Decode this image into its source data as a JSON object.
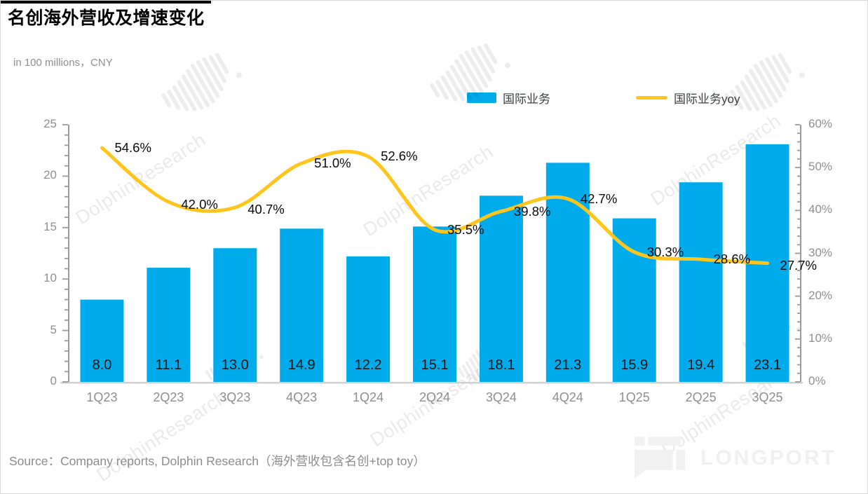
{
  "header": {
    "title": "名创海外营收及增速变化",
    "subtitle": "in 100 millions，CNY"
  },
  "legend": {
    "bar_label": "国际业务",
    "line_label": "国际业务yoy"
  },
  "colors": {
    "bar": "#00ABEB",
    "line": "#FFC51D",
    "axis": "#9a9a9a",
    "bottom_axis": "#d0d0d0",
    "tick_label": "#8f8f8f",
    "data_label": "#0a0a0a"
  },
  "chart_data": {
    "type": "bar+line",
    "title": "名创海外营收及增速变化",
    "subtitle": "in 100 millions，CNY",
    "categories": [
      "1Q23",
      "2Q23",
      "3Q23",
      "4Q23",
      "1Q24",
      "2Q24",
      "3Q24",
      "4Q24",
      "1Q25",
      "2Q25",
      "3Q25"
    ],
    "series": [
      {
        "name": "国际业务",
        "type": "bar",
        "axis": "left",
        "values": [
          8.0,
          11.1,
          13.0,
          14.9,
          12.2,
          15.1,
          18.1,
          21.3,
          15.9,
          19.4,
          23.1
        ],
        "labels": [
          "8.0",
          "11.1",
          "13.0",
          "14.9",
          "12.2",
          "15.1",
          "18.1",
          "21.3",
          "15.9",
          "19.4",
          "23.1"
        ]
      },
      {
        "name": "国际业务yoy",
        "type": "line",
        "axis": "right",
        "values": [
          54.6,
          42.0,
          40.7,
          51.0,
          52.6,
          35.5,
          39.8,
          42.7,
          30.3,
          28.6,
          27.7
        ],
        "labels": [
          "54.6%",
          "42.0%",
          "40.7%",
          "51.0%",
          "52.6%",
          "35.5%",
          "39.8%",
          "42.7%",
          "30.3%",
          "28.6%",
          "27.7%"
        ]
      }
    ],
    "left_axis": {
      "min": 0,
      "max": 25,
      "tick_labels": [
        "0",
        "5",
        "10",
        "15",
        "20",
        "25"
      ]
    },
    "right_axis": {
      "min": 0,
      "max": 60,
      "tick_labels": [
        "0%",
        "10%",
        "20%",
        "30%",
        "40%",
        "50%",
        "60%"
      ]
    },
    "grid": false,
    "legend_position": "top"
  },
  "footer": {
    "source": "Source：Company reports, Dolphin Research（海外营收包含名创+top toy）",
    "brand": "LONGPORT"
  },
  "watermark": {
    "text": "DolphinResearch"
  }
}
